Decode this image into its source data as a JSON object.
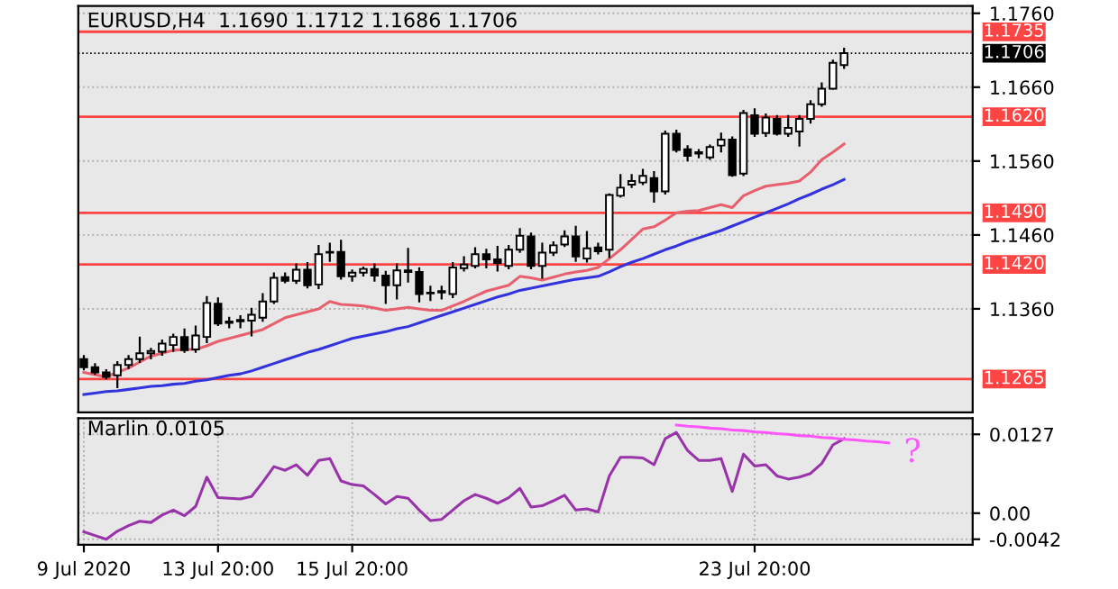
{
  "chart_data": [
    {
      "type": "candlestick",
      "title": "EURUSD,H4  1.1690 1.1712 1.1686 1.1706",
      "categories": [
        null,
        null,
        null,
        null,
        null,
        null,
        null,
        null,
        null,
        null,
        null,
        null,
        null,
        null,
        null,
        null,
        null,
        null,
        null,
        null,
        null,
        null,
        null,
        null,
        null,
        null,
        null,
        null,
        null,
        null,
        null,
        null,
        null,
        null,
        null,
        null,
        null,
        null,
        null,
        null,
        null,
        null,
        null,
        null,
        null,
        null,
        null,
        null,
        null,
        null,
        null,
        null,
        null,
        null,
        null,
        null,
        null,
        null,
        null,
        null,
        null,
        null,
        null,
        null,
        null,
        null,
        null,
        null,
        null,
        null,
        null,
        null,
        null,
        null,
        null,
        null,
        null,
        null,
        null,
        null
      ],
      "ohlc": [
        [
          1.1292,
          1.1296,
          1.1278,
          1.1281
        ],
        [
          1.1281,
          1.1285,
          1.1272,
          1.1274
        ],
        [
          1.1274,
          1.1277,
          1.1266,
          1.1268
        ],
        [
          1.127,
          1.1288,
          1.1254,
          1.1284
        ],
        [
          1.1284,
          1.1296,
          1.128,
          1.1292
        ],
        [
          1.1292,
          1.1321,
          1.1288,
          1.13
        ],
        [
          1.13,
          1.1306,
          1.1293,
          1.1303
        ],
        [
          1.1302,
          1.1317,
          1.1298,
          1.1313
        ],
        [
          1.1311,
          1.1325,
          1.1303,
          1.1322
        ],
        [
          1.1322,
          1.1332,
          1.1302,
          1.1304
        ],
        [
          1.1305,
          1.1336,
          1.1302,
          1.1324
        ],
        [
          1.1322,
          1.1376,
          1.1315,
          1.1368
        ],
        [
          1.1367,
          1.1374,
          1.1338,
          1.134
        ],
        [
          1.1341,
          1.1348,
          1.1335,
          1.1343
        ],
        [
          1.1343,
          1.135,
          1.1335,
          1.1345
        ],
        [
          1.1344,
          1.136,
          1.1324,
          1.1352
        ],
        [
          1.1348,
          1.138,
          1.1344,
          1.137
        ],
        [
          1.137,
          1.1408,
          1.1368,
          1.1402
        ],
        [
          1.1403,
          1.1408,
          1.1396,
          1.1398
        ],
        [
          1.1398,
          1.142,
          1.1395,
          1.1413
        ],
        [
          1.1413,
          1.1422,
          1.1389,
          1.1392
        ],
        [
          1.1393,
          1.1445,
          1.1388,
          1.1434
        ],
        [
          1.1436,
          1.1448,
          1.1425,
          1.1437
        ],
        [
          1.1437,
          1.1452,
          1.1401,
          1.1404
        ],
        [
          1.1404,
          1.1412,
          1.1398,
          1.1409
        ],
        [
          1.1409,
          1.1416,
          1.1405,
          1.1414
        ],
        [
          1.1414,
          1.142,
          1.1398,
          1.1405
        ],
        [
          1.1405,
          1.141,
          1.1368,
          1.1392
        ],
        [
          1.1392,
          1.142,
          1.1374,
          1.1412
        ],
        [
          1.1412,
          1.1441,
          1.1397,
          1.141
        ],
        [
          1.141,
          1.1415,
          1.137,
          1.138
        ],
        [
          1.1381,
          1.139,
          1.1372,
          1.1382
        ],
        [
          1.1382,
          1.139,
          1.1374,
          1.1384
        ],
        [
          1.138,
          1.1422,
          1.1376,
          1.1416
        ],
        [
          1.1415,
          1.143,
          1.1412,
          1.142
        ],
        [
          1.1418,
          1.1442,
          1.1416,
          1.1434
        ],
        [
          1.1434,
          1.144,
          1.1416,
          1.1427
        ],
        [
          1.1427,
          1.1444,
          1.1412,
          1.1422
        ],
        [
          1.1418,
          1.1445,
          1.1415,
          1.144
        ],
        [
          1.144,
          1.1468,
          1.1437,
          1.1459
        ],
        [
          1.1458,
          1.1462,
          1.1415,
          1.1418
        ],
        [
          1.1418,
          1.1448,
          1.1402,
          1.1436
        ],
        [
          1.1436,
          1.145,
          1.1433,
          1.1446
        ],
        [
          1.1447,
          1.1465,
          1.1445,
          1.1458
        ],
        [
          1.1458,
          1.1471,
          1.1425,
          1.1431
        ],
        [
          1.1428,
          1.1464,
          1.1424,
          1.1442
        ],
        [
          1.1443,
          1.1448,
          1.1435,
          1.1438
        ],
        [
          1.144,
          1.1515,
          1.143,
          1.1514
        ],
        [
          1.1513,
          1.1541,
          1.1512,
          1.1524
        ],
        [
          1.1528,
          1.1541,
          1.1525,
          1.1533
        ],
        [
          1.1531,
          1.1548,
          1.1529,
          1.154
        ],
        [
          1.1537,
          1.1545,
          1.1505,
          1.1519
        ],
        [
          1.1519,
          1.16,
          1.1516,
          1.1597
        ],
        [
          1.1597,
          1.1601,
          1.1573,
          1.1575
        ],
        [
          1.1576,
          1.158,
          1.1561,
          1.1567
        ],
        [
          1.157,
          1.1575,
          1.1565,
          1.1572
        ],
        [
          1.1565,
          1.1581,
          1.1563,
          1.1579
        ],
        [
          1.1581,
          1.1597,
          1.1573,
          1.1589
        ],
        [
          1.1589,
          1.1592,
          1.154,
          1.1541
        ],
        [
          1.1543,
          1.1628,
          1.1541,
          1.1625
        ],
        [
          1.1622,
          1.163,
          1.1594,
          1.1597
        ],
        [
          1.1598,
          1.1623,
          1.1594,
          1.1619
        ],
        [
          1.1617,
          1.1621,
          1.1596,
          1.1597
        ],
        [
          1.1597,
          1.1621,
          1.1594,
          1.1605
        ],
        [
          1.16,
          1.1621,
          1.1581,
          1.1617
        ],
        [
          1.1617,
          1.1641,
          1.1612,
          1.1637
        ],
        [
          1.1637,
          1.1665,
          1.1635,
          1.1658
        ],
        [
          1.1658,
          1.1696,
          1.1658,
          1.1693
        ],
        [
          1.169,
          1.1712,
          1.1686,
          1.1706
        ],
        null,
        null,
        null,
        null,
        null,
        null,
        null,
        null,
        null,
        null,
        null
      ],
      "series": [
        {
          "type": "line",
          "color": "#e8606e",
          "values": [
            1.1274,
            1.1271,
            1.1268,
            1.1274,
            1.128,
            1.1288,
            1.1296,
            1.13,
            1.1304,
            1.1305,
            1.1305,
            1.131,
            1.1316,
            1.132,
            1.1324,
            1.1328,
            1.1332,
            1.134,
            1.1348,
            1.1352,
            1.1356,
            1.136,
            1.137,
            1.1366,
            1.1365,
            1.1364,
            1.1361,
            1.1358,
            1.136,
            1.1362,
            1.136,
            1.1358,
            1.1358,
            1.1364,
            1.137,
            1.1377,
            1.1384,
            1.1388,
            1.1392,
            1.1404,
            1.1402,
            1.1399,
            1.1403,
            1.1407,
            1.141,
            1.1412,
            1.1416,
            1.1428,
            1.144,
            1.1454,
            1.1468,
            1.1471,
            1.148,
            1.149,
            1.1492,
            1.1493,
            1.1497,
            1.1501,
            1.1497,
            1.1513,
            1.152,
            1.1526,
            1.1528,
            1.153,
            1.1533,
            1.1545,
            1.1562,
            1.1572,
            1.1583,
            null,
            null,
            null,
            null,
            null,
            null,
            null,
            null,
            null,
            null,
            null
          ]
        },
        {
          "type": "line",
          "color": "#3333dd",
          "values": [
            1.1244,
            1.1246,
            1.1248,
            1.1249,
            1.1251,
            1.1253,
            1.1255,
            1.1256,
            1.1258,
            1.1259,
            1.1262,
            1.1264,
            1.1267,
            1.127,
            1.1272,
            1.1276,
            1.1281,
            1.1286,
            1.1291,
            1.1296,
            1.1301,
            1.1305,
            1.131,
            1.1315,
            1.132,
            1.1323,
            1.1326,
            1.1329,
            1.1333,
            1.1336,
            1.1341,
            1.1346,
            1.1351,
            1.1356,
            1.1361,
            1.1366,
            1.1371,
            1.1376,
            1.138,
            1.1385,
            1.1388,
            1.1391,
            1.1394,
            1.1397,
            1.14,
            1.1402,
            1.1404,
            1.141,
            1.1417,
            1.1423,
            1.1428,
            1.1434,
            1.144,
            1.1445,
            1.1451,
            1.1456,
            1.1461,
            1.1466,
            1.1472,
            1.1478,
            1.1484,
            1.149,
            1.1496,
            1.1502,
            1.1509,
            1.1515,
            1.1522,
            1.1528,
            1.1535,
            null,
            null,
            null,
            null,
            null,
            null,
            null,
            null,
            null,
            null,
            null
          ]
        }
      ],
      "ylim": [
        1.122,
        1.177
      ],
      "yticks": [
        {
          "value": 1.176,
          "label": "1.1760"
        },
        {
          "value": 1.166,
          "label": "1.1660"
        },
        {
          "value": 1.156,
          "label": "1.1560"
        },
        {
          "value": 1.146,
          "label": "1.1460"
        },
        {
          "value": 1.136,
          "label": "1.1360"
        }
      ],
      "ref_lines": [
        {
          "axis": "y",
          "value": 1.1735,
          "label": "1.1735",
          "color": "#ff4444"
        },
        {
          "axis": "y",
          "value": 1.1706,
          "label": "1.1706",
          "color": "#000000",
          "line_style": "dotted"
        },
        {
          "axis": "y",
          "value": 1.162,
          "label": "1.1620",
          "color": "#ff4444"
        },
        {
          "axis": "y",
          "value": 1.149,
          "label": "1.1490",
          "color": "#ff4444"
        },
        {
          "axis": "y",
          "value": 1.142,
          "label": "1.1420",
          "color": "#ff4444"
        },
        {
          "axis": "y",
          "value": 1.1265,
          "label": "1.1265",
          "color": "#ff4444"
        }
      ],
      "grid": true,
      "tick_labels": "y"
    },
    {
      "type": "line",
      "title": "Marlin 0.0105",
      "categories": [
        "9 Jul 2020",
        null,
        null,
        null,
        null,
        null,
        null,
        null,
        null,
        null,
        null,
        null,
        "13 Jul 20:00",
        null,
        null,
        null,
        null,
        null,
        null,
        null,
        null,
        null,
        null,
        null,
        "15 Jul 20:00",
        null,
        null,
        null,
        null,
        null,
        null,
        null,
        null,
        null,
        null,
        null,
        null,
        null,
        null,
        null,
        null,
        null,
        null,
        null,
        null,
        null,
        null,
        null,
        null,
        null,
        null,
        null,
        null,
        null,
        null,
        null,
        null,
        null,
        null,
        null,
        "23 Jul 20:00",
        null,
        null,
        null,
        null,
        null,
        null,
        null,
        null,
        null,
        null,
        null,
        null,
        null,
        null,
        null,
        null,
        null,
        null,
        null
      ],
      "series": [
        {
          "color": "#9933aa",
          "values": [
            -0.003,
            -0.0036,
            -0.0042,
            -0.0029,
            -0.002,
            -0.0013,
            -0.0015,
            -0.0003,
            0.0005,
            -0.0004,
            0.0011,
            0.0058,
            0.0025,
            0.0024,
            0.0023,
            0.0027,
            0.005,
            0.0075,
            0.0069,
            0.0078,
            0.0061,
            0.0085,
            0.0088,
            0.0052,
            0.0046,
            0.0044,
            0.003,
            0.0015,
            0.0027,
            0.0024,
            0.0005,
            -0.0012,
            -0.001,
            0.0005,
            0.002,
            0.003,
            0.0024,
            0.0016,
            0.0025,
            0.004,
            0.001,
            0.0012,
            0.002,
            0.0029,
            0.0005,
            0.0007,
            0.0002,
            0.006,
            0.009,
            0.009,
            0.0089,
            0.0078,
            0.012,
            0.013,
            0.0101,
            0.0085,
            0.0085,
            0.0088,
            0.0035,
            0.0095,
            0.0076,
            0.0078,
            0.006,
            0.0055,
            0.0058,
            0.0064,
            0.008,
            0.011,
            0.012,
            null,
            null,
            null,
            null,
            null,
            null,
            null,
            null,
            null,
            null,
            null
          ]
        },
        {
          "type": "line",
          "color": "#ff55ff",
          "values": [
            null,
            null,
            null,
            null,
            null,
            null,
            null,
            null,
            null,
            null,
            null,
            null,
            null,
            null,
            null,
            null,
            null,
            null,
            null,
            null,
            null,
            null,
            null,
            null,
            null,
            null,
            null,
            null,
            null,
            null,
            null,
            null,
            null,
            null,
            null,
            null,
            null,
            null,
            null,
            null,
            null,
            null,
            null,
            null,
            null,
            null,
            null,
            null,
            null,
            null,
            null,
            null,
            null,
            0.0142,
            0.014,
            0.0139,
            0.0137,
            0.0136,
            0.0134,
            0.0133,
            0.0131,
            0.013,
            0.0128,
            0.0127,
            0.0125,
            0.0124,
            0.0122,
            0.0121,
            0.0119,
            0.0118,
            0.0116,
            0.0115,
            0.0113,
            null,
            null,
            null,
            null,
            null,
            null,
            null
          ]
        }
      ],
      "annotations": [
        "?"
      ],
      "ylim": [
        -0.0051,
        0.0153
      ],
      "yticks": [
        {
          "value": 0.0127,
          "label": "0.0127"
        },
        {
          "value": 0,
          "label": "0.00"
        },
        {
          "value": -0.0042,
          "label": "-0.0042"
        }
      ],
      "grid": true
    }
  ]
}
